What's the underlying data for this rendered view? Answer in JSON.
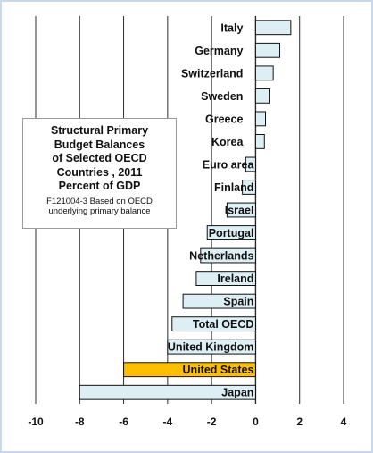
{
  "chart_data": {
    "type": "bar",
    "orientation": "horizontal",
    "categories": [
      "Italy",
      "Germany",
      "Switzerland",
      "Sweden",
      "Greece",
      "Korea",
      "Euro area",
      "Finland",
      "Israel",
      "Portugal",
      "Netherlands",
      "Ireland",
      "Spain",
      "Total OECD",
      "United Kingdom",
      "United States",
      "Japan"
    ],
    "values": [
      1.6,
      1.1,
      0.8,
      0.65,
      0.45,
      0.4,
      -0.45,
      -0.6,
      -1.3,
      -2.2,
      -2.5,
      -2.7,
      -3.3,
      -3.8,
      -4.0,
      -6.0,
      -8.0
    ],
    "highlight": "United States",
    "xlim": [
      -10,
      4
    ],
    "xticks": [
      "-10",
      "-8",
      "-6",
      "-4",
      "-2",
      "0",
      "2",
      "4"
    ],
    "grid": true,
    "colors": {
      "bar": "#ddeef5",
      "highlight_bar": "#ffbf00",
      "bar_edge": "#111111",
      "grid": "#2b2b2b"
    }
  },
  "info_box": {
    "title_lines": [
      "Structural Primary",
      "Budget Balances",
      "of Selected OECD",
      "Countries , 2011",
      "Percent of GDP"
    ],
    "note_lines": [
      "F121004-3 Based on OECD",
      "underlying primary balance"
    ]
  }
}
